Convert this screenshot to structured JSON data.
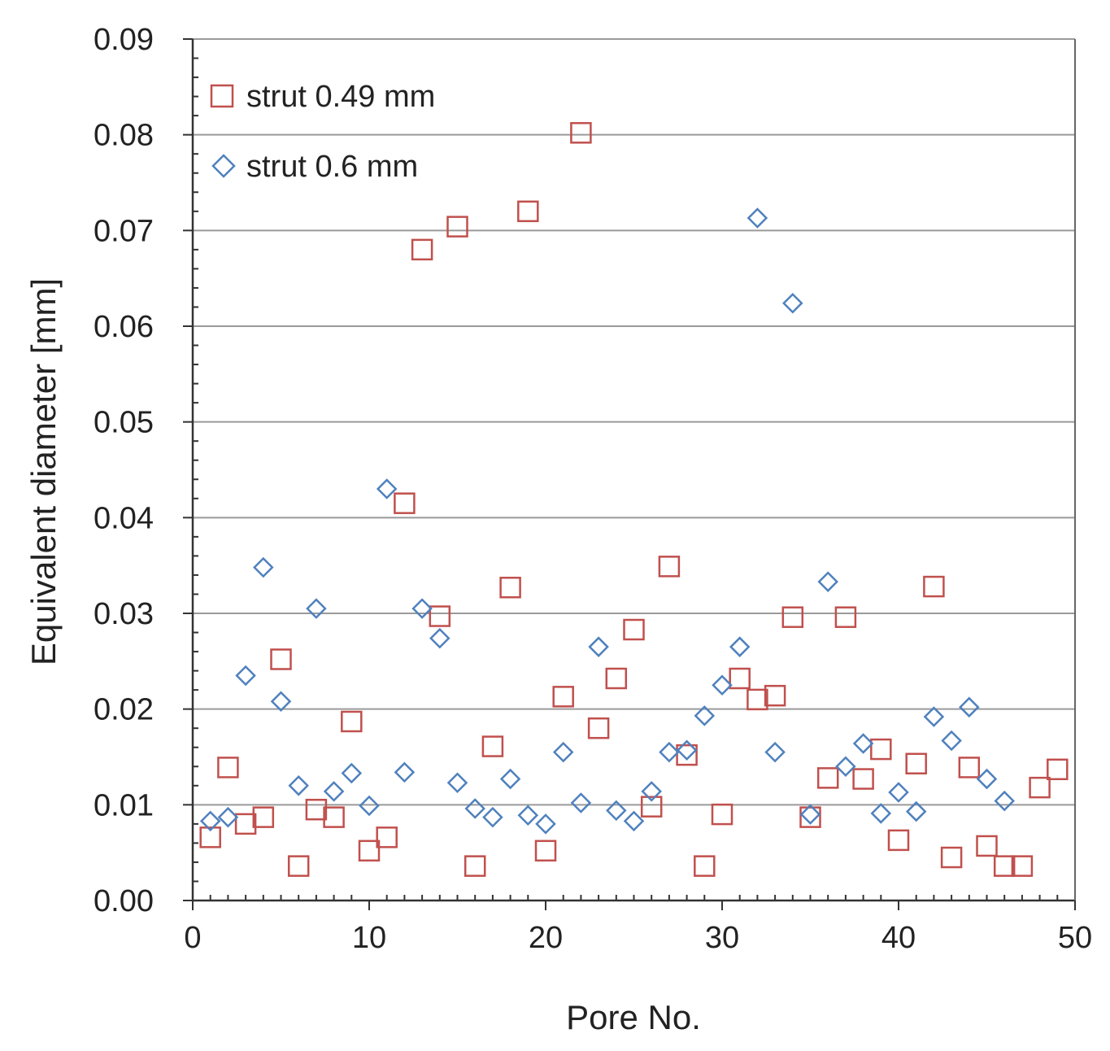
{
  "chart_data": {
    "type": "scatter",
    "title": "",
    "xlabel": "Pore No.",
    "ylabel": "Equivalent diameter [mm]",
    "xlim": [
      0,
      50
    ],
    "ylim": [
      0,
      0.09
    ],
    "x_ticks": [
      0,
      10,
      20,
      30,
      40,
      50
    ],
    "x_tick_labels": [
      "0",
      "10",
      "20",
      "30",
      "40",
      "50"
    ],
    "y_ticks": [
      0,
      0.01,
      0.02,
      0.03,
      0.04,
      0.05,
      0.06,
      0.07,
      0.08,
      0.09
    ],
    "y_tick_labels": [
      "0.00",
      "0.01",
      "0.02",
      "0.03",
      "0.04",
      "0.05",
      "0.06",
      "0.07",
      "0.08",
      "0.09"
    ],
    "grid": "horizontal",
    "legend_position": "top-left",
    "series": [
      {
        "name": "strut 0.49 mm",
        "marker": "square",
        "color": "#C0504D",
        "x": [
          1,
          2,
          3,
          4,
          5,
          6,
          7,
          8,
          9,
          10,
          11,
          12,
          13,
          14,
          15,
          16,
          17,
          18,
          19,
          20,
          21,
          22,
          23,
          24,
          25,
          26,
          27,
          28,
          29,
          30,
          31,
          32,
          33,
          34,
          35,
          36,
          37,
          38,
          39,
          40,
          41,
          42,
          43,
          44,
          45,
          46,
          47,
          48,
          49
        ],
        "y": [
          0.0066,
          0.0139,
          0.008,
          0.0087,
          0.0252,
          0.0036,
          0.0095,
          0.0087,
          0.0187,
          0.0052,
          0.0066,
          0.0415,
          0.068,
          0.0297,
          0.0704,
          0.0036,
          0.0161,
          0.0327,
          0.072,
          0.0052,
          0.0213,
          0.0802,
          0.018,
          0.0232,
          0.0283,
          0.0098,
          0.0349,
          0.0152,
          0.0036,
          0.009,
          0.0232,
          0.021,
          0.0214,
          0.0296,
          0.0087,
          0.0128,
          0.0296,
          0.0127,
          0.0158,
          0.0063,
          0.0143,
          0.0328,
          0.0045,
          0.0139,
          0.0057,
          0.0036,
          0.0036,
          0.0118,
          0.0137
        ]
      },
      {
        "name": "strut 0.6 mm",
        "marker": "diamond",
        "color": "#4F81BD",
        "x": [
          1,
          2,
          3,
          4,
          5,
          6,
          7,
          8,
          9,
          10,
          11,
          12,
          13,
          14,
          15,
          16,
          17,
          18,
          19,
          20,
          21,
          22,
          23,
          24,
          25,
          26,
          27,
          28,
          29,
          30,
          31,
          32,
          33,
          34,
          35,
          36,
          37,
          38,
          39,
          40,
          41,
          42,
          43,
          44,
          45,
          46
        ],
        "y": [
          0.0083,
          0.0087,
          0.0235,
          0.0348,
          0.0208,
          0.012,
          0.0305,
          0.0114,
          0.0133,
          0.0099,
          0.043,
          0.0134,
          0.0305,
          0.0274,
          0.0123,
          0.0096,
          0.0087,
          0.0127,
          0.0089,
          0.008,
          0.0155,
          0.0102,
          0.0265,
          0.0094,
          0.0083,
          0.0114,
          0.0155,
          0.0157,
          0.0193,
          0.0225,
          0.0265,
          0.0713,
          0.0155,
          0.0624,
          0.009,
          0.0333,
          0.014,
          0.0164,
          0.0091,
          0.0113,
          0.0093,
          0.0192,
          0.0167,
          0.0202,
          0.0127,
          0.0104
        ]
      }
    ]
  }
}
